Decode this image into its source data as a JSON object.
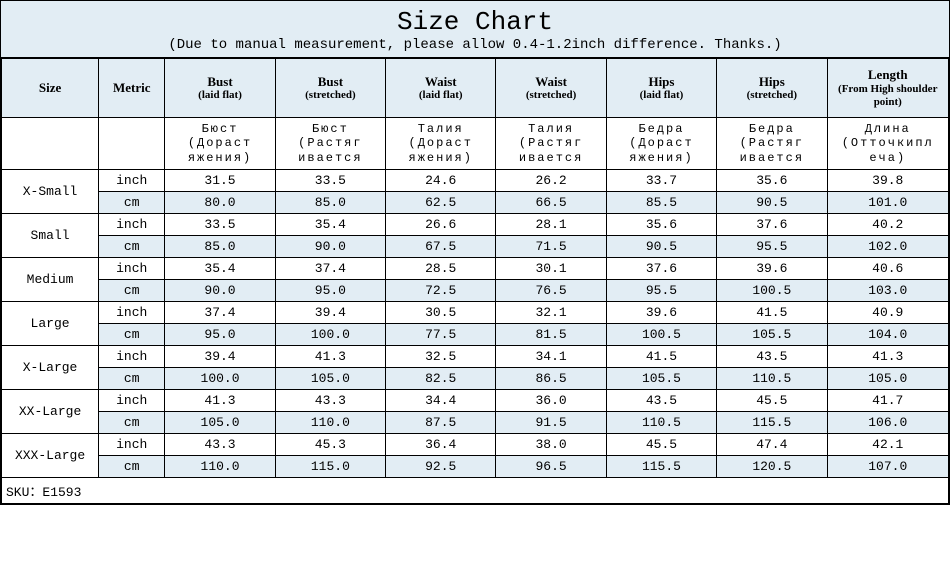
{
  "title": "Size Chart",
  "subtitle": "(Due to manual measurement, please allow 0.4-1.2inch difference. Thanks.)",
  "headers": {
    "size": "Size",
    "metric": "Metric",
    "bust_flat": {
      "main": "Bust",
      "sub": "(laid flat)"
    },
    "bust_str": {
      "main": "Bust",
      "sub": "(stretched)"
    },
    "waist_flat": {
      "main": "Waist",
      "sub": "(laid flat)"
    },
    "waist_str": {
      "main": "Waist",
      "sub": "(stretched)"
    },
    "hips_flat": {
      "main": "Hips",
      "sub": "(laid flat)"
    },
    "hips_str": {
      "main": "Hips",
      "sub": "(stretched)"
    },
    "length": {
      "main": "Length",
      "sub": "(From High shoulder point)"
    }
  },
  "translit": {
    "bust_flat": "Бюст (Дораст яжения)",
    "bust_str": "Бюст (Растяг ивается",
    "waist_flat": "Талия (Дораст яжения)",
    "waist_str": "Талия (Растяг ивается",
    "hips_flat": "Бедра (Дораст яжения)",
    "hips_str": "Бедра (Растяг ивается",
    "length": "Длина (Отточкипл еча)"
  },
  "metric_labels": {
    "inch": "inch",
    "cm": "cm"
  },
  "sizes": [
    {
      "name": "X-Small",
      "inch": [
        "31.5",
        "33.5",
        "24.6",
        "26.2",
        "33.7",
        "35.6",
        "39.8"
      ],
      "cm": [
        "80.0",
        "85.0",
        "62.5",
        "66.5",
        "85.5",
        "90.5",
        "101.0"
      ]
    },
    {
      "name": "Small",
      "inch": [
        "33.5",
        "35.4",
        "26.6",
        "28.1",
        "35.6",
        "37.6",
        "40.2"
      ],
      "cm": [
        "85.0",
        "90.0",
        "67.5",
        "71.5",
        "90.5",
        "95.5",
        "102.0"
      ]
    },
    {
      "name": "Medium",
      "inch": [
        "35.4",
        "37.4",
        "28.5",
        "30.1",
        "37.6",
        "39.6",
        "40.6"
      ],
      "cm": [
        "90.0",
        "95.0",
        "72.5",
        "76.5",
        "95.5",
        "100.5",
        "103.0"
      ]
    },
    {
      "name": "Large",
      "inch": [
        "37.4",
        "39.4",
        "30.5",
        "32.1",
        "39.6",
        "41.5",
        "40.9"
      ],
      "cm": [
        "95.0",
        "100.0",
        "77.5",
        "81.5",
        "100.5",
        "105.5",
        "104.0"
      ]
    },
    {
      "name": "X-Large",
      "inch": [
        "39.4",
        "41.3",
        "32.5",
        "34.1",
        "41.5",
        "43.5",
        "41.3"
      ],
      "cm": [
        "100.0",
        "105.0",
        "82.5",
        "86.5",
        "105.5",
        "110.5",
        "105.0"
      ]
    },
    {
      "name": "XX-Large",
      "inch": [
        "41.3",
        "43.3",
        "34.4",
        "36.0",
        "43.5",
        "45.5",
        "41.7"
      ],
      "cm": [
        "105.0",
        "110.0",
        "87.5",
        "91.5",
        "110.5",
        "115.5",
        "106.0"
      ]
    },
    {
      "name": "XXX-Large",
      "inch": [
        "43.3",
        "45.3",
        "36.4",
        "38.0",
        "45.5",
        "47.4",
        "42.1"
      ],
      "cm": [
        "110.0",
        "115.0",
        "92.5",
        "96.5",
        "115.5",
        "120.5",
        "107.0"
      ]
    }
  ],
  "sku": "SKU：E1593",
  "colors": {
    "bg_header": "#e2edf4",
    "bg_white": "#ffffff",
    "border": "#000000"
  }
}
